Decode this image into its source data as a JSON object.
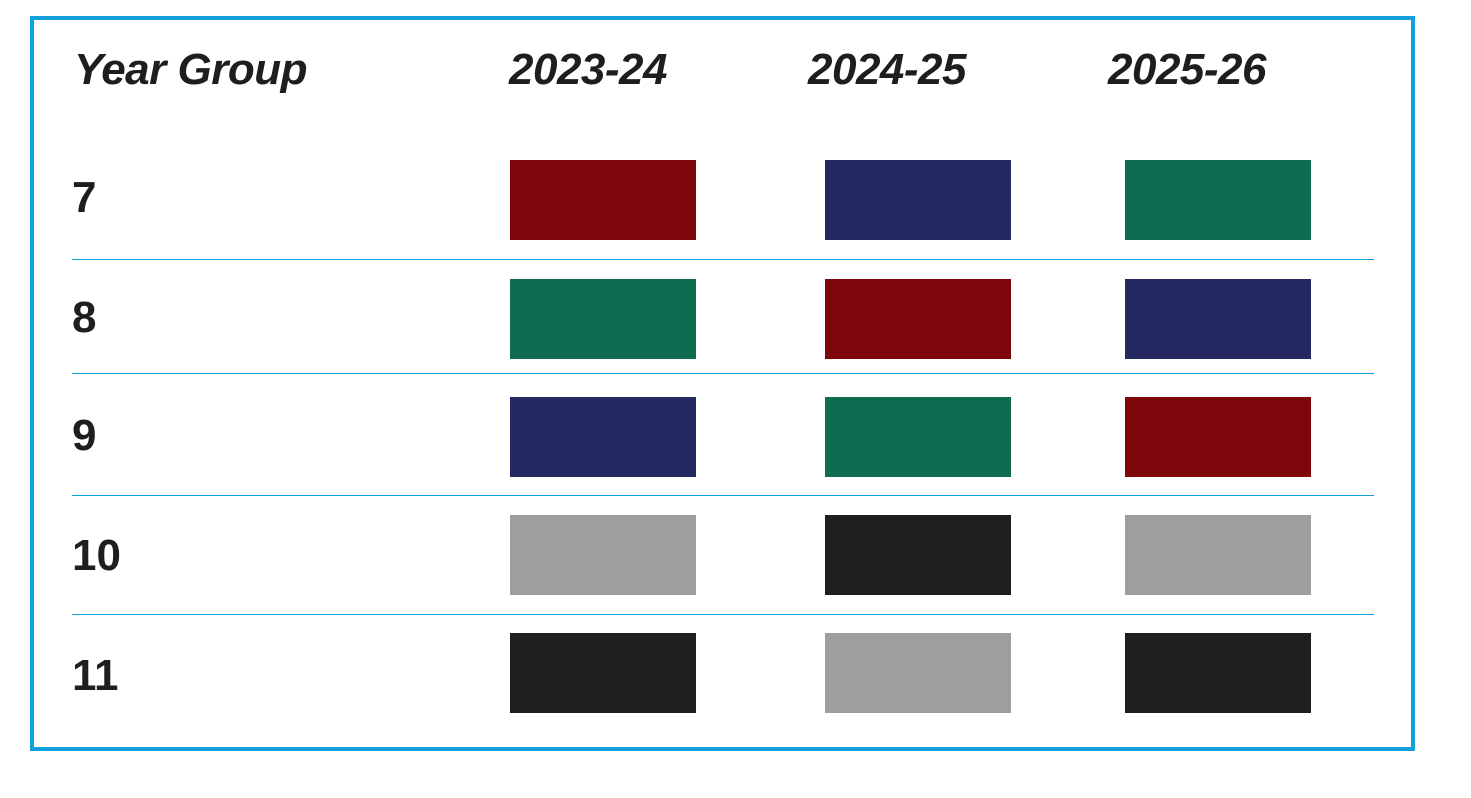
{
  "table": {
    "header": {
      "year_group": "Year Group",
      "years": [
        "2023-24",
        "2024-25",
        "2025-26"
      ]
    },
    "colors": {
      "maroon": "#7e070b",
      "navy": "#242a61",
      "green": "#106c50",
      "grey": "#9e9e9e",
      "black": "#1e1e1e"
    },
    "rows": [
      {
        "year_group": "7",
        "swatches": [
          "maroon",
          "navy",
          "green"
        ]
      },
      {
        "year_group": "8",
        "swatches": [
          "green",
          "maroon",
          "navy"
        ]
      },
      {
        "year_group": "9",
        "swatches": [
          "navy",
          "green",
          "maroon"
        ]
      },
      {
        "year_group": "10",
        "swatches": [
          "grey",
          "black",
          "grey"
        ]
      },
      {
        "year_group": "11",
        "swatches": [
          "black",
          "grey",
          "black"
        ]
      }
    ]
  }
}
